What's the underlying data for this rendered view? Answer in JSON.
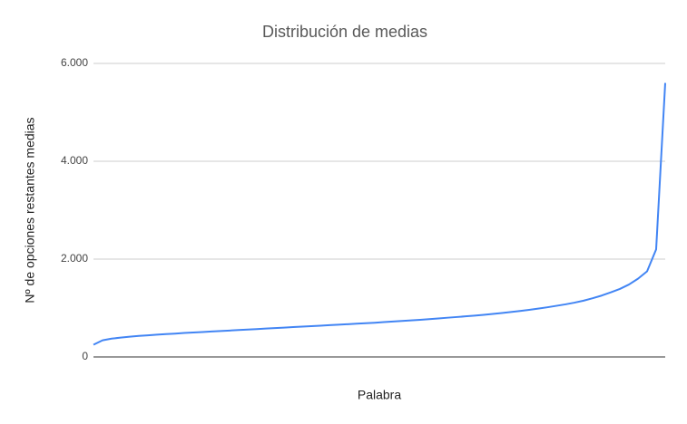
{
  "chart_data": {
    "type": "line",
    "title": "Distribución de medias",
    "x_label": "Palabra",
    "y_label": "Nº de opciones restantes medias",
    "categories": [
      null,
      null,
      null,
      null,
      null,
      null,
      null,
      null,
      null,
      null,
      null,
      null,
      null,
      null,
      null,
      null,
      null,
      null,
      null,
      null,
      null,
      null,
      null,
      null,
      null,
      null,
      null,
      null,
      null,
      null,
      null,
      null,
      null,
      null,
      null,
      null,
      null,
      null,
      null,
      null,
      null,
      null,
      null,
      null,
      null,
      null,
      null,
      null,
      null,
      null,
      null,
      null,
      null,
      null,
      null,
      null,
      null,
      null,
      null,
      null,
      null,
      null,
      null,
      null
    ],
    "values": [
      250,
      340,
      375,
      395,
      415,
      430,
      443,
      455,
      467,
      478,
      490,
      500,
      510,
      520,
      530,
      540,
      550,
      560,
      570,
      580,
      590,
      600,
      610,
      620,
      630,
      640,
      650,
      660,
      670,
      680,
      690,
      700,
      712,
      724,
      736,
      748,
      760,
      774,
      788,
      802,
      816,
      830,
      846,
      862,
      880,
      898,
      918,
      940,
      962,
      988,
      1015,
      1045,
      1075,
      1110,
      1150,
      1200,
      1255,
      1320,
      1390,
      1480,
      1600,
      1750,
      2200,
      5600
    ],
    "color": "#4285f4",
    "ylim": [
      0,
      6000
    ],
    "yticks": [
      0,
      {
        "value": 2000,
        "label": "2.000"
      },
      {
        "value": 4000,
        "label": "4.000"
      },
      {
        "value": 6000,
        "label": "6.000"
      }
    ],
    "grid": true
  }
}
